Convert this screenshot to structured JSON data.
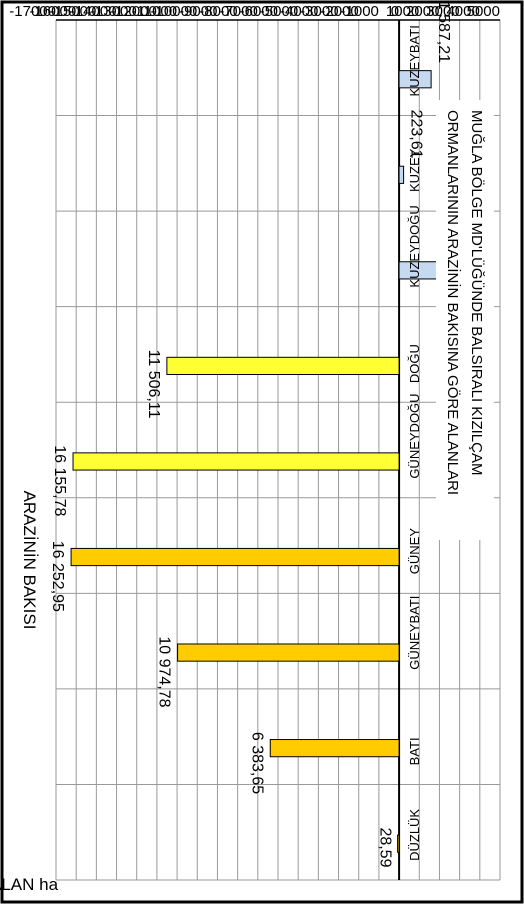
{
  "chart_data": {
    "type": "bar",
    "title": "MUĞLA BÖLGE MD'LÜĞÜNDE BALSIRALI  KIZILÇAM ORMANLARININ ARAZİNİN BAKISINA GÖRE ALANLARI",
    "title_lines": [
      "MUĞLA BÖLGE MD'LÜĞÜNDE BALSIRALI  KIZILÇAM",
      "ORMANLARININ ARAZİNİN BAKISINA GÖRE ALANLARI"
    ],
    "xlabel": "ARAZİNİN BAKISI",
    "ylabel": "ALAN  ha",
    "ylim": [
      -17000,
      5000
    ],
    "y_ticks": [
      "5000",
      "4000",
      "3000",
      "2000",
      "1000",
      "0",
      "-1000",
      "-2000",
      "-3000",
      "-4000",
      "-5000",
      "-6000",
      "-7000",
      "-8000",
      "-9000",
      "-10000",
      "-11000",
      "-12000",
      "-13000",
      "-14000",
      "-15000",
      "-16000",
      "-17000"
    ],
    "grid": true,
    "categories": [
      "KUZEYBATI",
      "KUZEY",
      "KUZEYDOĞU",
      "DOĞU",
      "GÜNEYDOĞU",
      "GÜNEY",
      "GÜNEYBATI",
      "BATI",
      "DÜZLÜK"
    ],
    "values": [
      1587.21,
      223.61,
      3192.2,
      -11506.11,
      -16155.78,
      -16252.95,
      -10974.78,
      -6383.65,
      -28.59
    ],
    "value_labels": [
      "1 587,21",
      "223,61",
      "3 192,2",
      "11 506,11",
      "16 155,78",
      "16 252,95",
      "10 974,78",
      "6 383,65",
      "28,59"
    ],
    "bar_colors": [
      "#c5d9f1",
      "#c5d9f1",
      "#c5d9f1",
      "#ffff33",
      "#ffff33",
      "#ffcc00",
      "#ffcc00",
      "#ffcc00",
      "#ffcc00"
    ]
  }
}
